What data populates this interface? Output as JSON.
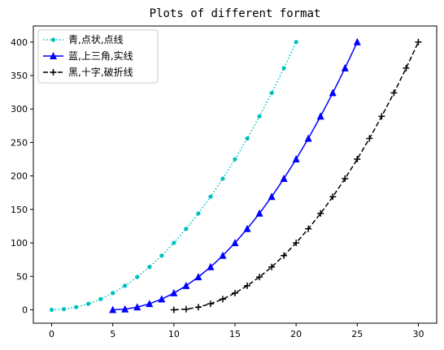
{
  "chart_data": {
    "type": "line",
    "title": "Plots of different format",
    "xlabel": "",
    "ylabel": "",
    "xlim": [
      -1.5,
      31.5
    ],
    "ylim": [
      -20,
      424
    ],
    "xticks": [
      0,
      5,
      10,
      15,
      20,
      25,
      30
    ],
    "yticks": [
      0,
      50,
      100,
      150,
      200,
      250,
      300,
      350,
      400
    ],
    "grid": false,
    "legend_position": "top-left",
    "series": [
      {
        "name": "青,点状,点线",
        "color": "#00bfbf",
        "line_style": "dotted",
        "marker": "point",
        "x": [
          0,
          1,
          2,
          3,
          4,
          5,
          6,
          7,
          8,
          9,
          10,
          11,
          12,
          13,
          14,
          15,
          16,
          17,
          18,
          19,
          20
        ],
        "y": [
          0,
          1,
          4,
          9,
          16,
          25,
          36,
          49,
          64,
          81,
          100,
          121,
          144,
          169,
          196,
          225,
          256,
          289,
          324,
          361,
          400
        ]
      },
      {
        "name": "蓝,上三角,实线",
        "color": "#0000ff",
        "line_style": "solid",
        "marker": "triangle-up",
        "x": [
          5,
          6,
          7,
          8,
          9,
          10,
          11,
          12,
          13,
          14,
          15,
          16,
          17,
          18,
          19,
          20,
          21,
          22,
          23,
          24,
          25
        ],
        "y": [
          0,
          1,
          4,
          9,
          16,
          25,
          36,
          49,
          64,
          81,
          100,
          121,
          144,
          169,
          196,
          225,
          256,
          289,
          324,
          361,
          400
        ]
      },
      {
        "name": "黑,十字,破折线",
        "color": "#000000",
        "line_style": "dashed",
        "marker": "plus",
        "x": [
          10,
          11,
          12,
          13,
          14,
          15,
          16,
          17,
          18,
          19,
          20,
          21,
          22,
          23,
          24,
          25,
          26,
          27,
          28,
          29,
          30
        ],
        "y": [
          0,
          1,
          4,
          9,
          16,
          25,
          36,
          49,
          64,
          81,
          100,
          121,
          144,
          169,
          196,
          225,
          256,
          289,
          324,
          361,
          400
        ]
      }
    ]
  }
}
